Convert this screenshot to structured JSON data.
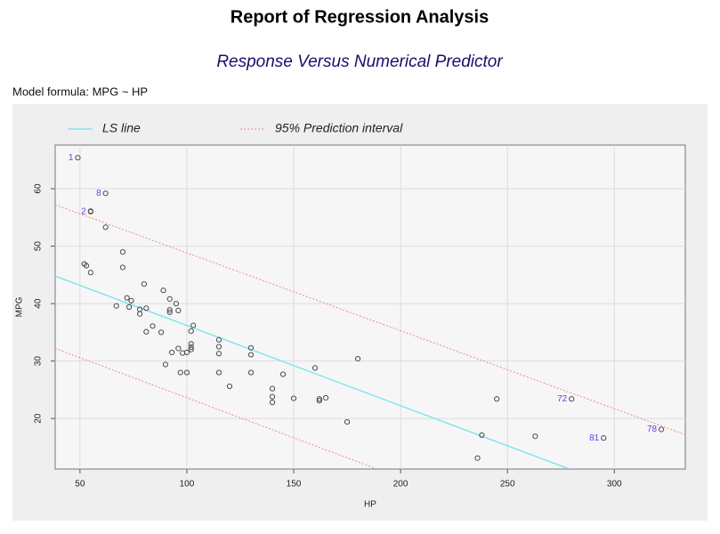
{
  "header": {
    "title": "Report of Regression Analysis",
    "subtitle": "Response Versus Numerical Predictor",
    "formula": "Model formula: MPG ~ HP"
  },
  "chart_data": {
    "type": "scatter",
    "x_label": "HP",
    "y_label": "MPG",
    "xlim": [
      38.4,
      333.2
    ],
    "ylim": [
      11.2,
      67.6
    ],
    "xticks": [
      50,
      100,
      150,
      200,
      250,
      300
    ],
    "yticks": [
      20,
      30,
      40,
      50,
      60
    ],
    "grid": true,
    "legend": "top",
    "point_color": "#4a4a4a",
    "point_label_color": "#6a3de8",
    "x": [
      49,
      62,
      55,
      55,
      62,
      52,
      53,
      55,
      70,
      70,
      67,
      72,
      74,
      73,
      78,
      78,
      81,
      80,
      81,
      84,
      88,
      89,
      90,
      92,
      92,
      92,
      95,
      96,
      93,
      96,
      97,
      98,
      100,
      100,
      102,
      103,
      102,
      102,
      102,
      115,
      115,
      115,
      115,
      120,
      130,
      130,
      130,
      140,
      140,
      140,
      145,
      150,
      160,
      162,
      162,
      165,
      175,
      180,
      236,
      238,
      245,
      263,
      280,
      295,
      322
    ],
    "values": [
      65.4,
      59.2,
      56,
      56.1,
      53.3,
      46.9,
      46.6,
      45.4,
      49,
      46.3,
      39.6,
      41,
      40.5,
      39.4,
      38.2,
      39,
      39.2,
      43.4,
      35.1,
      36.1,
      35,
      42.3,
      29.4,
      40.8,
      38.9,
      38.5,
      40,
      38.8,
      31.5,
      32.2,
      28,
      31.4,
      31.5,
      28,
      35.2,
      36.2,
      33,
      32.4,
      32,
      33.7,
      32.5,
      31.3,
      28,
      25.6,
      32.3,
      31.1,
      28,
      25.2,
      23.8,
      22.8,
      27.7,
      23.5,
      28.8,
      23.4,
      23.1,
      23.6,
      19.4,
      30.4,
      13.1,
      17.1,
      23.4,
      16.9,
      23.4,
      16.6,
      18.1
    ],
    "point_labels": [
      "1",
      "8",
      "2",
      null,
      null,
      null,
      null,
      null,
      null,
      null,
      null,
      null,
      null,
      null,
      null,
      null,
      null,
      null,
      null,
      null,
      null,
      null,
      null,
      null,
      null,
      null,
      null,
      null,
      null,
      null,
      null,
      null,
      null,
      null,
      null,
      null,
      null,
      null,
      null,
      null,
      null,
      null,
      null,
      null,
      null,
      null,
      null,
      null,
      null,
      null,
      null,
      null,
      null,
      null,
      null,
      null,
      null,
      null,
      null,
      null,
      null,
      null,
      "72",
      "81",
      "78"
    ],
    "series": [
      {
        "name": "LS line",
        "color": "#86e3f0",
        "style": "solid",
        "x": [
          38.4,
          279
        ],
        "values": [
          44.8,
          11.2
        ]
      },
      {
        "name": "95% Prediction interval",
        "color": "#f08a8a",
        "style": "dotted",
        "x": [
          38.4,
          333.2,
          null,
          38.4,
          189
        ],
        "values": [
          57.2,
          17.2,
          null,
          32.2,
          11.2
        ]
      }
    ]
  }
}
